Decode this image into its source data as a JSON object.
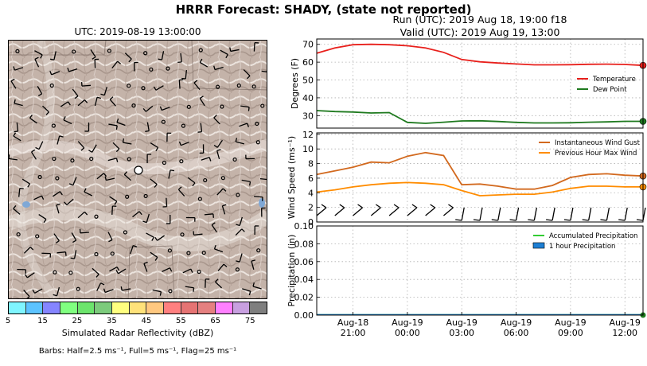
{
  "titles": {
    "main": "HRRR Forecast: SHADY, (state not reported)",
    "map": "UTC: 2019-08-19 13:00:00",
    "run": "Run (UTC): 2019 Aug 18, 19:00 f18",
    "valid": "Valid (UTC): 2019 Aug 19, 13:00"
  },
  "colorbar": {
    "label": "Simulated Radar Reflectivity (dBZ)",
    "ticks": [
      "5",
      "15",
      "25",
      "35",
      "45",
      "55",
      "65",
      "75"
    ],
    "colors": [
      "#7ff5ff",
      "#5cc3ff",
      "#8585ff",
      "#80ff80",
      "#6ce46c",
      "#7ccb7c",
      "#ffff80",
      "#ffe27a",
      "#ffc880",
      "#ff8080",
      "#e57373",
      "#e58080",
      "#ff80ff",
      "#c8a0e0",
      "#7f7f7f"
    ]
  },
  "barbs_note": "Barbs: Half=2.5 ms⁻¹, Full=5 ms⁻¹, Flag=25 ms⁻¹",
  "chart_data": [
    {
      "type": "line",
      "ylabel": "Degrees (F)",
      "ylim": [
        23,
        73
      ],
      "yticks": [
        30,
        40,
        50,
        60,
        70
      ],
      "x": [
        19,
        20,
        21,
        22,
        23,
        24,
        25,
        26,
        27,
        28,
        29,
        30,
        31,
        32,
        33,
        34,
        35,
        36,
        37
      ],
      "series": [
        {
          "name": "Temperature",
          "color": "#e8201c",
          "values": [
            65,
            68,
            69.8,
            70,
            69.8,
            69.2,
            68,
            65.5,
            61.5,
            60.2,
            59.5,
            59,
            58.5,
            58.5,
            58.6,
            58.8,
            58.9,
            58.7,
            58.2
          ]
        },
        {
          "name": "Dew Point",
          "color": "#1f7a1f",
          "values": [
            32.8,
            32.3,
            32,
            31.5,
            31.7,
            26.2,
            25.7,
            26.3,
            27,
            27.1,
            26.7,
            26.2,
            25.9,
            25.9,
            26,
            26.3,
            26.5,
            26.8,
            26.8
          ]
        }
      ],
      "legend": "right"
    },
    {
      "type": "line",
      "ylabel": "Wind Speed (ms⁻¹)",
      "ylim": [
        0,
        12.2
      ],
      "yticks": [
        0,
        2,
        4,
        6,
        8,
        10,
        12
      ],
      "x": [
        19,
        20,
        21,
        22,
        23,
        24,
        25,
        26,
        27,
        28,
        29,
        30,
        31,
        32,
        33,
        34,
        35,
        36,
        37
      ],
      "series": [
        {
          "name": "Instantaneous Wind Gust",
          "color": "#d2691e",
          "values": [
            6.5,
            7,
            7.5,
            8.2,
            8.1,
            9,
            9.5,
            9.1,
            5.1,
            5.2,
            4.9,
            4.5,
            4.5,
            5,
            6.1,
            6.5,
            6.6,
            6.4,
            6.3
          ]
        },
        {
          "name": "Previous Hour Max Wind",
          "color": "#ff8c00",
          "values": [
            4.1,
            4.4,
            4.8,
            5.1,
            5.3,
            5.4,
            5.3,
            5.1,
            4.3,
            3.6,
            3.7,
            3.8,
            3.8,
            4.1,
            4.6,
            4.9,
            4.9,
            4.8,
            4.8
          ]
        }
      ],
      "legend": "top-right"
    },
    {
      "type": "line",
      "ylabel": "Precipitation (in)",
      "ylim": [
        0,
        0.1
      ],
      "yticks": [
        "0.00",
        "0.02",
        "0.04",
        "0.06",
        "0.08",
        "0.10"
      ],
      "x": [
        19,
        20,
        21,
        22,
        23,
        24,
        25,
        26,
        27,
        28,
        29,
        30,
        31,
        32,
        33,
        34,
        35,
        36,
        37
      ],
      "series": [
        {
          "name": "Accumulated Precipitation",
          "color": "#33cc33",
          "values": [
            0,
            0,
            0,
            0,
            0,
            0,
            0,
            0,
            0,
            0,
            0,
            0,
            0,
            0,
            0,
            0,
            0,
            0,
            0
          ]
        },
        {
          "name": "1 hour Precipitation",
          "color": "#1e7fd4",
          "values": [
            0,
            0,
            0,
            0,
            0,
            0,
            0,
            0,
            0,
            0,
            0,
            0,
            0,
            0,
            0,
            0,
            0,
            0,
            0
          ]
        }
      ],
      "legend": "top-right"
    }
  ],
  "xaxis": {
    "ticks": [
      {
        "x": 21,
        "line1": "Aug-18",
        "line2": "21:00"
      },
      {
        "x": 24,
        "line1": "Aug-19",
        "line2": "00:00"
      },
      {
        "x": 27,
        "line1": "Aug-19",
        "line2": "03:00"
      },
      {
        "x": 30,
        "line1": "Aug-19",
        "line2": "06:00"
      },
      {
        "x": 33,
        "line1": "Aug-19",
        "line2": "09:00"
      },
      {
        "x": 36,
        "line1": "Aug-19",
        "line2": "12:00"
      }
    ]
  }
}
